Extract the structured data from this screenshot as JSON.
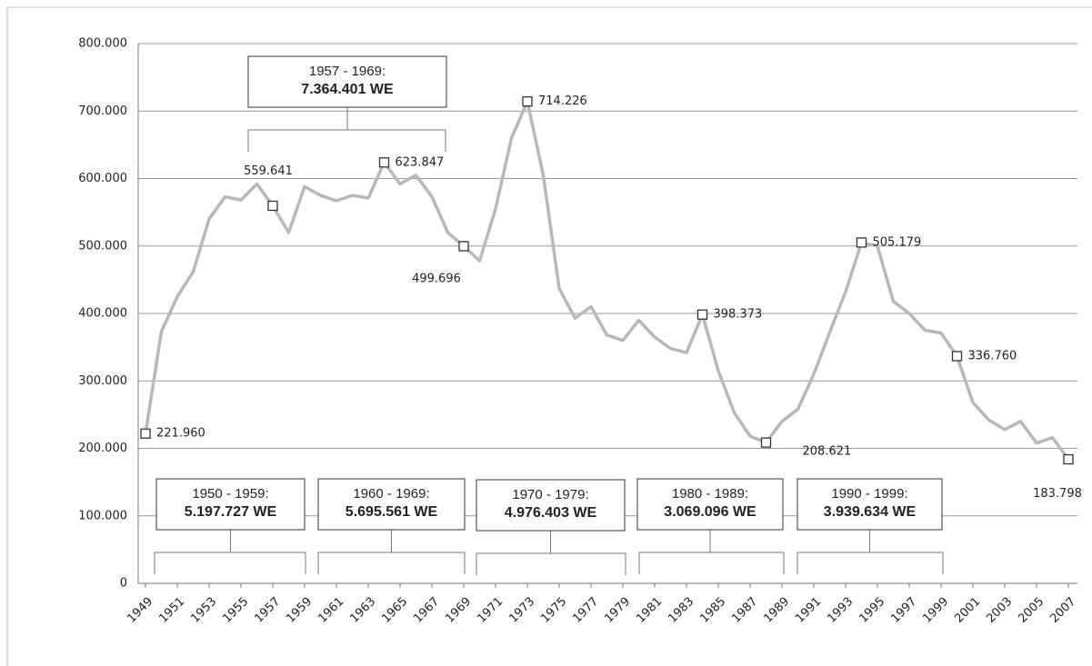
{
  "chart_data": {
    "type": "line",
    "x": [
      1949,
      1950,
      1951,
      1952,
      1953,
      1954,
      1955,
      1956,
      1957,
      1958,
      1959,
      1960,
      1961,
      1962,
      1963,
      1964,
      1965,
      1966,
      1967,
      1968,
      1969,
      1970,
      1971,
      1972,
      1973,
      1974,
      1975,
      1976,
      1977,
      1978,
      1979,
      1980,
      1981,
      1982,
      1983,
      1984,
      1985,
      1986,
      1987,
      1988,
      1989,
      1990,
      1991,
      1992,
      1993,
      1994,
      1995,
      1996,
      1997,
      1998,
      1999,
      2000,
      2001,
      2002,
      2003,
      2004,
      2005,
      2006,
      2007
    ],
    "xlim": [
      1949,
      2007
    ],
    "xticks": [
      1949,
      1951,
      1953,
      1955,
      1957,
      1959,
      1961,
      1963,
      1965,
      1967,
      1969,
      1971,
      1973,
      1975,
      1977,
      1979,
      1981,
      1983,
      1985,
      1987,
      1989,
      1991,
      1993,
      1995,
      1997,
      1999,
      2001,
      2003,
      2005,
      2007
    ],
    "series": [
      {
        "color": "#b8b8b8",
        "values": [
          221960,
          373000,
          425000,
          462000,
          540000,
          573000,
          568000,
          592000,
          559641,
          520000,
          588000,
          575000,
          567000,
          575000,
          571000,
          623847,
          592000,
          605000,
          573000,
          520000,
          499696,
          478000,
          555000,
          660000,
          714226,
          605000,
          437000,
          393000,
          410000,
          368000,
          360000,
          390000,
          365000,
          348000,
          342000,
          398373,
          315000,
          253000,
          218000,
          208621,
          240000,
          258000,
          310000,
          372000,
          432000,
          505179,
          500000,
          418000,
          400000,
          375000,
          371000,
          336760,
          268000,
          242000,
          228000,
          240000,
          208000,
          216000,
          183798
        ],
        "value_labels": [
          "221.960",
          null,
          null,
          null,
          null,
          null,
          null,
          null,
          "559.641",
          null,
          null,
          null,
          null,
          null,
          null,
          "623.847",
          null,
          null,
          null,
          null,
          "499.696",
          null,
          null,
          null,
          "714.226",
          null,
          null,
          null,
          null,
          null,
          null,
          null,
          null,
          null,
          null,
          "398.373",
          null,
          null,
          null,
          "208.621",
          null,
          null,
          null,
          null,
          null,
          "505.179",
          null,
          null,
          null,
          null,
          null,
          "336.760",
          null,
          null,
          null,
          null,
          null,
          null,
          "183.798"
        ]
      }
    ],
    "ylim": [
      0,
      800000
    ],
    "yticks": [
      0,
      {
        "value": 100000,
        "label": "100.000"
      },
      {
        "value": 200000,
        "label": "200.000"
      },
      {
        "value": 300000,
        "label": "300.000"
      },
      {
        "value": 400000,
        "label": "400.000"
      },
      {
        "value": 500000,
        "label": "500.000"
      },
      {
        "value": 600000,
        "label": "600.000"
      },
      {
        "value": 700000,
        "label": "700.000"
      },
      {
        "value": 800000,
        "label": "800.000"
      }
    ],
    "grid": true,
    "annotations": [
      {
        "text": "1957 - 1969:",
        "total": "7.364.401 WE"
      },
      {
        "text": "1950 - 1959:",
        "total": "5.197.727 WE"
      },
      {
        "text": "1960 - 1969:",
        "total": "5.695.561 WE"
      },
      {
        "text": "1970 - 1979:",
        "total": "4.976.403 WE"
      },
      {
        "text": "1980 - 1989:",
        "total": "3.069.096 WE"
      },
      {
        "text": "1990 - 1999:",
        "total": "3.939.634 WE"
      }
    ]
  }
}
